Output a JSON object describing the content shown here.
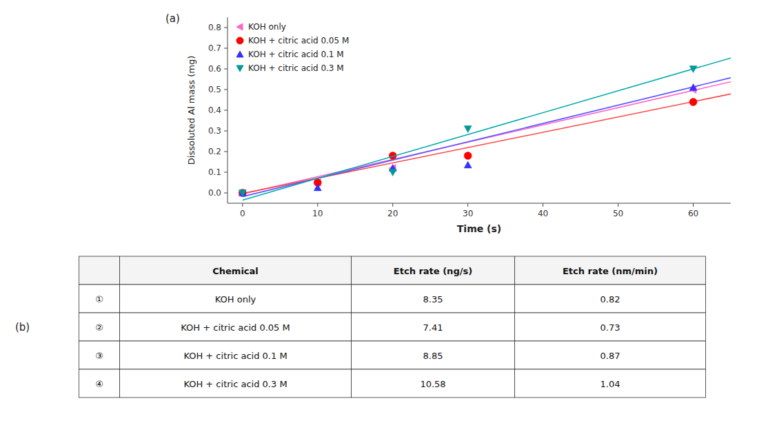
{
  "chart_data": [
    {
      "type": "scatter",
      "title": "(a)",
      "xlabel": "Time (s)",
      "ylabel": "Dissoluted Al mass (mg)",
      "xlim": [
        -2,
        65
      ],
      "ylim": [
        -0.05,
        0.85
      ],
      "xticks": [
        0,
        10,
        20,
        30,
        40,
        50,
        60
      ],
      "yticks": [
        {
          "value": 0.0,
          "label": "0.0"
        },
        0.1,
        0.2,
        0.3,
        0.4,
        0.5,
        0.6,
        0.7,
        0.8
      ],
      "grid": false,
      "legend": "upper-left",
      "series": [
        {
          "type": "line",
          "color": "#FF66CC",
          "line_style": "solid",
          "x": [
            0,
            65
          ],
          "values": [
            -0.005,
            0.53775
          ]
        },
        {
          "type": "scatter",
          "name": "KOH only",
          "color": "#FF66CC",
          "marker": "triangle-left",
          "x": [
            0,
            10,
            20,
            60
          ],
          "values": [
            0.0,
            0.05,
            0.12,
            0.5
          ]
        },
        {
          "type": "line",
          "color": "#FF4444",
          "line_style": "solid",
          "x": [
            0,
            65
          ],
          "values": [
            -0.003,
            0.47865
          ]
        },
        {
          "type": "scatter",
          "name": "KOH + citric acid 0.05 M",
          "color": "#FF0000",
          "marker": "circle",
          "x": [
            0,
            10,
            20,
            30,
            60
          ],
          "values": [
            0.0,
            0.05,
            0.18,
            0.18,
            0.44
          ]
        },
        {
          "type": "line",
          "color": "#5555FF",
          "line_style": "solid",
          "x": [
            0,
            65
          ],
          "values": [
            -0.018,
            0.55725
          ]
        },
        {
          "type": "scatter",
          "name": "KOH + citric acid 0.1 M",
          "color": "#3333FF",
          "marker": "triangle-up",
          "x": [
            0,
            10,
            20,
            30,
            60
          ],
          "values": [
            0.0,
            0.025,
            0.12,
            0.135,
            0.51
          ]
        },
        {
          "type": "line",
          "color": "#00AAAA",
          "line_style": "solid",
          "x": [
            0,
            65
          ],
          "values": [
            -0.035,
            0.6527
          ]
        },
        {
          "type": "scatter",
          "name": "KOH + citric acid 0.3 M",
          "color": "#009999",
          "marker": "triangle-down",
          "x": [
            0,
            20,
            30,
            60
          ],
          "values": [
            0.0,
            0.1,
            0.31,
            0.6
          ]
        }
      ]
    },
    {
      "type": "table",
      "title": "(b)",
      "columns": [
        null,
        "Chemical",
        "Etch rate (ng/s)",
        "Etch rate (nm/min)"
      ],
      "rows": [
        [
          "①",
          "KOH only",
          "8.35",
          "0.82"
        ],
        [
          "②",
          "KOH + citric acid 0.05 M",
          "7.41",
          "0.73"
        ],
        [
          "③",
          "KOH + citric acid 0.1 M",
          "8.85",
          "0.87"
        ],
        [
          "④",
          "KOH + citric acid 0.3 M",
          "10.58",
          "1.04"
        ]
      ]
    }
  ]
}
